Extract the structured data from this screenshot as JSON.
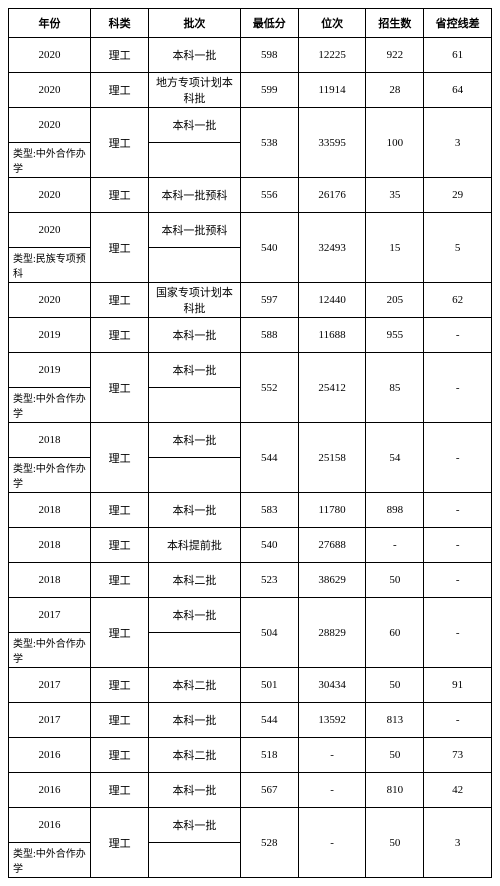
{
  "headers": [
    "年份",
    "科类",
    "批次",
    "最低分",
    "位次",
    "招生数",
    "省控线差"
  ],
  "rows": [
    {
      "year": "2020",
      "cat": "理工",
      "batch": "本科一批",
      "min": "598",
      "rank": "12225",
      "count": "922",
      "line": "61"
    },
    {
      "year": "2020",
      "cat": "理工",
      "batch": "地方专项计划本科批",
      "min": "599",
      "rank": "11914",
      "count": "28",
      "line": "64"
    },
    {
      "year": "2020",
      "tall": true,
      "subtype": "类型:中外合作办学",
      "cat": "理工",
      "batch": "本科一批",
      "min": "538",
      "rank": "33595",
      "count": "100",
      "line": "3"
    },
    {
      "year": "2020",
      "cat": "理工",
      "batch": "本科一批预科",
      "min": "556",
      "rank": "26176",
      "count": "35",
      "line": "29"
    },
    {
      "year": "2020",
      "tall": true,
      "subtype": "类型:民族专项预科",
      "cat": "理工",
      "batch": "本科一批预科",
      "min": "540",
      "rank": "32493",
      "count": "15",
      "line": "5"
    },
    {
      "year": "2020",
      "cat": "理工",
      "batch": "国家专项计划本科批",
      "min": "597",
      "rank": "12440",
      "count": "205",
      "line": "62"
    },
    {
      "year": "2019",
      "cat": "理工",
      "batch": "本科一批",
      "min": "588",
      "rank": "11688",
      "count": "955",
      "line": "-"
    },
    {
      "year": "2019",
      "tall": true,
      "subtype": "类型:中外合作办学",
      "cat": "理工",
      "batch": "本科一批",
      "min": "552",
      "rank": "25412",
      "count": "85",
      "line": "-"
    },
    {
      "year": "2018",
      "tall": true,
      "subtype": "类型:中外合作办学",
      "cat": "理工",
      "batch": "本科一批",
      "min": "544",
      "rank": "25158",
      "count": "54",
      "line": "-"
    },
    {
      "year": "2018",
      "cat": "理工",
      "batch": "本科一批",
      "min": "583",
      "rank": "11780",
      "count": "898",
      "line": "-"
    },
    {
      "year": "2018",
      "cat": "理工",
      "batch": "本科提前批",
      "min": "540",
      "rank": "27688",
      "count": "-",
      "line": "-"
    },
    {
      "year": "2018",
      "cat": "理工",
      "batch": "本科二批",
      "min": "523",
      "rank": "38629",
      "count": "50",
      "line": "-"
    },
    {
      "year": "2017",
      "tall": true,
      "subtype": "类型:中外合作办学",
      "cat": "理工",
      "batch": "本科一批",
      "min": "504",
      "rank": "28829",
      "count": "60",
      "line": "-"
    },
    {
      "year": "2017",
      "cat": "理工",
      "batch": "本科二批",
      "min": "501",
      "rank": "30434",
      "count": "50",
      "line": "91"
    },
    {
      "year": "2017",
      "cat": "理工",
      "batch": "本科一批",
      "min": "544",
      "rank": "13592",
      "count": "813",
      "line": "-"
    },
    {
      "year": "2016",
      "cat": "理工",
      "batch": "本科二批",
      "min": "518",
      "rank": "-",
      "count": "50",
      "line": "73"
    },
    {
      "year": "2016",
      "cat": "理工",
      "batch": "本科一批",
      "min": "567",
      "rank": "-",
      "count": "810",
      "line": "42"
    },
    {
      "year": "2016",
      "tall": true,
      "subtype": "类型:中外合作办学",
      "cat": "理工",
      "batch": "本科一批",
      "min": "528",
      "rank": "-",
      "count": "50",
      "line": "3"
    }
  ]
}
